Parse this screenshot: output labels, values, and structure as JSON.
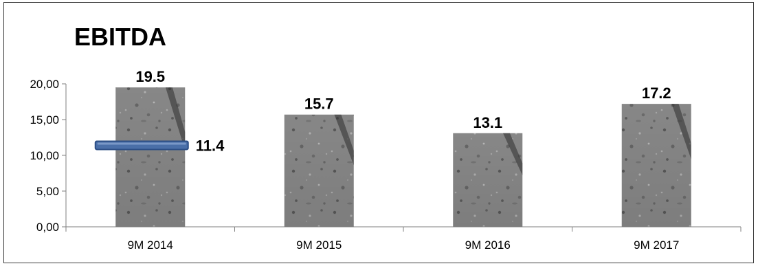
{
  "chart_data": {
    "type": "bar",
    "title": "EBITDA",
    "categories": [
      "9M 2014",
      "9M 2015",
      "9M 2016",
      "9M 2017"
    ],
    "series": [
      {
        "values": [
          19.5,
          15.7,
          13.1,
          17.2
        ]
      }
    ],
    "value_labels": [
      "19.5",
      "15.7",
      "13.1",
      "17.2"
    ],
    "y_ticks": [
      "0,00",
      "5,00",
      "10,00",
      "15,00",
      "20,00"
    ],
    "ylim": [
      0,
      20
    ],
    "grid": false,
    "marker": {
      "category": "9M 2014",
      "value": 11.4,
      "label": "11.4",
      "color": "#4a6fa8"
    },
    "bar_fill": "#8c8c8c",
    "axis_color": "#7f7f7f"
  }
}
